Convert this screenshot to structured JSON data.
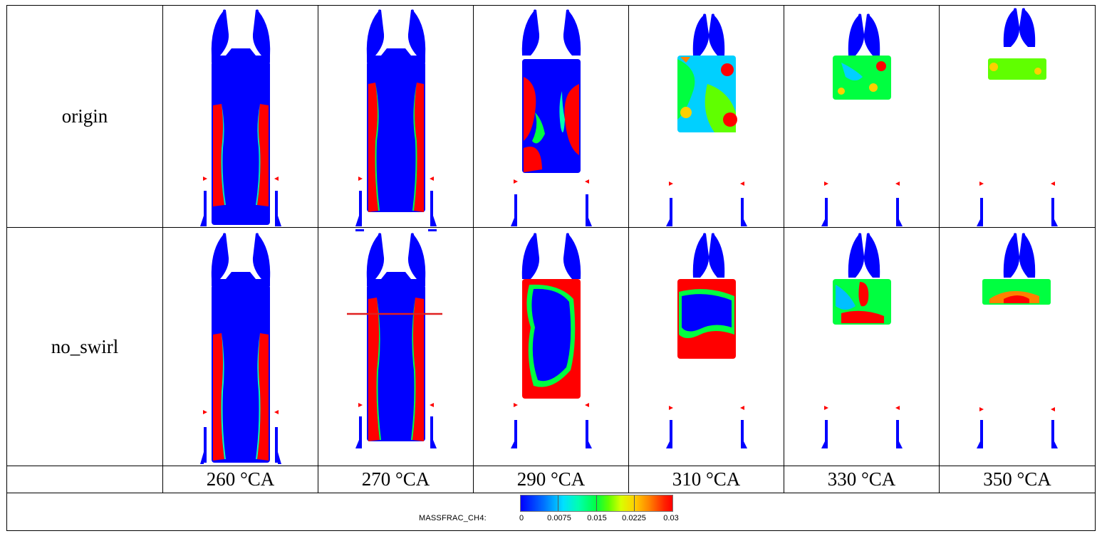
{
  "rows": [
    {
      "label": "origin"
    },
    {
      "label": "no_swirl"
    }
  ],
  "columns": [
    "260 °CA",
    "270 °CA",
    "290 °CA",
    "310 °CA",
    "330 °CA",
    "350 °CA"
  ],
  "legend": {
    "title": "MASSFRAC_CH4:",
    "ticks": [
      "0",
      "0.0075",
      "0.015",
      "0.0225",
      "0.03"
    ]
  },
  "colors": {
    "low": "#0000ff",
    "mid": "#00ff40",
    "high": "#ff0000"
  }
}
